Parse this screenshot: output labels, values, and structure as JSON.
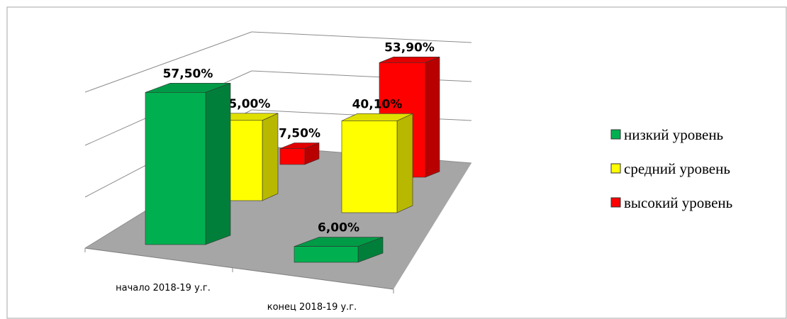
{
  "chart_data": {
    "type": "bar3d",
    "categories": [
      "начало 2018-19 у.г.",
      "конец 2018-19 у.г."
    ],
    "series": [
      {
        "name": "низкий уровень",
        "color": "#00b050",
        "values": [
          57.5,
          6.0
        ],
        "value_labels": [
          "57,50%",
          "6,00%"
        ]
      },
      {
        "name": "средний уровень",
        "color": "#ffff00",
        "values": [
          35.0,
          40.1
        ],
        "value_labels": [
          "35,00%",
          "40,10%"
        ]
      },
      {
        "name": "высокий уровень",
        "color": "#ff0000",
        "values": [
          7.5,
          53.9
        ],
        "value_labels": [
          "7,50%",
          "53,90%"
        ]
      }
    ],
    "ylim": [
      0,
      60
    ]
  }
}
